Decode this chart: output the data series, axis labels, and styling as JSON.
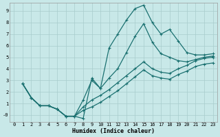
{
  "xlabel": "Humidex (Indice chaleur)",
  "bg_color": "#c8e8e8",
  "grid_color": "#a8cccc",
  "line_color": "#1a7070",
  "xlim": [
    -0.5,
    23.5
  ],
  "ylim": [
    -0.6,
    9.7
  ],
  "xticks": [
    0,
    1,
    2,
    3,
    4,
    5,
    6,
    7,
    8,
    9,
    10,
    11,
    12,
    13,
    14,
    15,
    16,
    17,
    18,
    19,
    20,
    21,
    22,
    23
  ],
  "yticks": [
    0,
    1,
    2,
    3,
    4,
    5,
    6,
    7,
    8,
    9
  ],
  "ytick_labels": [
    "-0",
    "1",
    "2",
    "3",
    "4",
    "5",
    "6",
    "7",
    "8",
    "9"
  ],
  "line1_x": [
    1,
    2,
    3,
    4,
    5,
    6,
    7,
    8,
    9,
    10,
    11,
    12,
    13,
    14,
    15,
    16,
    17,
    18,
    19,
    20,
    21,
    22,
    23
  ],
  "line1_y": [
    2.7,
    1.5,
    0.8,
    0.8,
    0.5,
    -0.1,
    -0.1,
    -0.3,
    3.2,
    2.3,
    5.8,
    7.0,
    8.2,
    9.2,
    9.5,
    8.0,
    7.0,
    7.4,
    6.4,
    5.4,
    5.2,
    5.2,
    5.3
  ],
  "line2_x": [
    1,
    2,
    3,
    4,
    5,
    6,
    7,
    8,
    9,
    10,
    11,
    12,
    13,
    14,
    15,
    16,
    17,
    18,
    19,
    20,
    21,
    22,
    23
  ],
  "line2_y": [
    2.7,
    1.5,
    0.8,
    0.8,
    0.5,
    -0.1,
    -0.1,
    1.3,
    3.0,
    2.3,
    3.2,
    4.0,
    5.4,
    6.8,
    7.9,
    6.3,
    5.3,
    5.0,
    4.7,
    4.6,
    4.8,
    5.0,
    5.1
  ],
  "line3_x": [
    1,
    2,
    3,
    4,
    5,
    6,
    7,
    8,
    9,
    10,
    11,
    12,
    13,
    14,
    15,
    16,
    17,
    18,
    19,
    20,
    21,
    22,
    23
  ],
  "line3_y": [
    2.7,
    1.5,
    0.8,
    0.8,
    0.5,
    -0.1,
    -0.1,
    0.7,
    1.3,
    1.7,
    2.2,
    2.8,
    3.4,
    4.0,
    4.6,
    4.0,
    3.7,
    3.6,
    4.0,
    4.3,
    4.7,
    4.9,
    5.0
  ],
  "line4_x": [
    1,
    2,
    3,
    4,
    5,
    6,
    7,
    8,
    9,
    10,
    11,
    12,
    13,
    14,
    15,
    16,
    17,
    18,
    19,
    20,
    21,
    22,
    23
  ],
  "line4_y": [
    2.7,
    1.5,
    0.8,
    0.8,
    0.5,
    -0.1,
    -0.1,
    0.4,
    0.7,
    1.1,
    1.6,
    2.1,
    2.7,
    3.3,
    3.9,
    3.4,
    3.2,
    3.1,
    3.5,
    3.8,
    4.2,
    4.4,
    4.5
  ]
}
